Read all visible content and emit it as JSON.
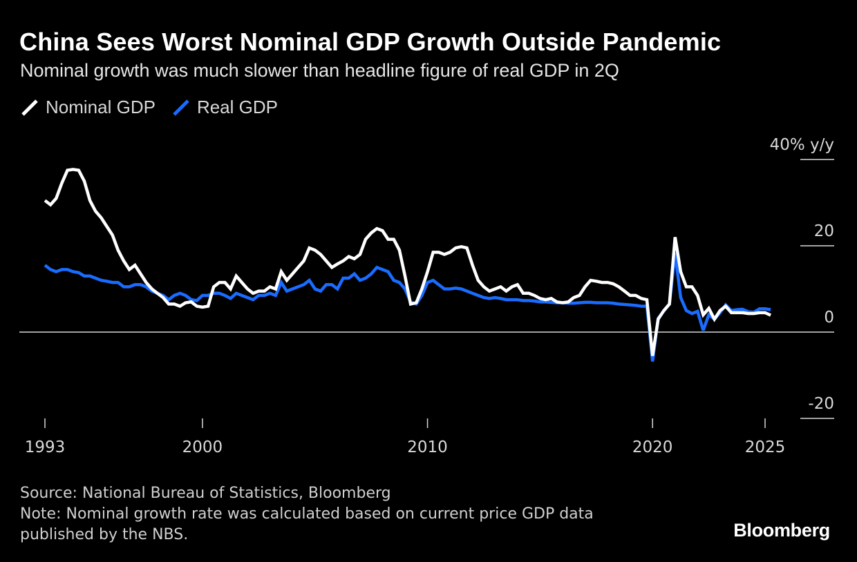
{
  "header": {
    "title": "China Sees Worst Nominal GDP Growth Outside Pandemic",
    "subtitle": "Nominal growth was much slower than headline figure of real GDP in 2Q"
  },
  "legend": {
    "nominal_label": "Nominal GDP",
    "real_label": "Real GDP"
  },
  "colors": {
    "background": "#000000",
    "nominal": "#ffffff",
    "real": "#1a6cff",
    "axis": "#d9d9d9"
  },
  "chart_data": {
    "type": "line",
    "title": "China Sees Worst Nominal GDP Growth Outside Pandemic",
    "subtitle": "Nominal growth was much slower than headline figure of real GDP in 2Q",
    "ylabel": "40% y/y",
    "ylim": [
      -20,
      40
    ],
    "yticks": [
      40,
      20,
      0,
      -20
    ],
    "ytick_labels": [
      "40% y/y",
      "20",
      "0",
      "-20"
    ],
    "xlim": [
      1993,
      2025.5
    ],
    "xticks": [
      1993,
      2000,
      2010,
      2020,
      2025
    ],
    "xtick_labels": [
      "1993",
      "2000",
      "2010",
      "2020",
      "2025"
    ],
    "legend_position": "top-left",
    "series": [
      {
        "name": "Nominal GDP",
        "points": [
          [
            1993.0,
            30.5
          ],
          [
            1993.25,
            29.5
          ],
          [
            1993.5,
            31.0
          ],
          [
            1993.75,
            34.5
          ],
          [
            1994.0,
            37.5
          ],
          [
            1994.25,
            37.7
          ],
          [
            1994.5,
            37.5
          ],
          [
            1994.75,
            35.0
          ],
          [
            1995.0,
            30.5
          ],
          [
            1995.25,
            28.0
          ],
          [
            1995.5,
            26.5
          ],
          [
            1995.75,
            24.5
          ],
          [
            1996.0,
            22.5
          ],
          [
            1996.25,
            19.0
          ],
          [
            1996.5,
            16.5
          ],
          [
            1996.75,
            14.5
          ],
          [
            1997.0,
            15.5
          ],
          [
            1997.25,
            13.5
          ],
          [
            1997.5,
            11.5
          ],
          [
            1997.75,
            10.0
          ],
          [
            1998.0,
            9.0
          ],
          [
            1998.25,
            8.0
          ],
          [
            1998.5,
            6.5
          ],
          [
            1998.75,
            6.5
          ],
          [
            1999.0,
            6.0
          ],
          [
            1999.25,
            6.8
          ],
          [
            1999.5,
            7.0
          ],
          [
            1999.75,
            6.0
          ],
          [
            2000.0,
            5.8
          ],
          [
            2000.25,
            6.0
          ],
          [
            2000.5,
            10.5
          ],
          [
            2000.75,
            11.5
          ],
          [
            2001.0,
            11.5
          ],
          [
            2001.25,
            10.0
          ],
          [
            2001.5,
            13.0
          ],
          [
            2001.75,
            11.5
          ],
          [
            2002.0,
            10.0
          ],
          [
            2002.25,
            9.0
          ],
          [
            2002.5,
            9.5
          ],
          [
            2002.75,
            9.5
          ],
          [
            2003.0,
            10.5
          ],
          [
            2003.25,
            10.0
          ],
          [
            2003.5,
            14.0
          ],
          [
            2003.75,
            12.0
          ],
          [
            2004.0,
            13.5
          ],
          [
            2004.25,
            15.0
          ],
          [
            2004.5,
            16.5
          ],
          [
            2004.75,
            19.5
          ],
          [
            2005.0,
            19.0
          ],
          [
            2005.25,
            18.0
          ],
          [
            2005.5,
            16.5
          ],
          [
            2005.75,
            15.0
          ],
          [
            2006.0,
            15.8
          ],
          [
            2006.25,
            16.5
          ],
          [
            2006.5,
            17.5
          ],
          [
            2006.75,
            17.0
          ],
          [
            2007.0,
            18.0
          ],
          [
            2007.25,
            21.5
          ],
          [
            2007.5,
            23.0
          ],
          [
            2007.75,
            24.0
          ],
          [
            2008.0,
            23.5
          ],
          [
            2008.25,
            21.5
          ],
          [
            2008.5,
            21.5
          ],
          [
            2008.75,
            19.0
          ],
          [
            2009.0,
            13.0
          ],
          [
            2009.25,
            6.5
          ],
          [
            2009.5,
            6.8
          ],
          [
            2009.75,
            10.0
          ],
          [
            2010.0,
            14.0
          ],
          [
            2010.25,
            18.5
          ],
          [
            2010.5,
            18.5
          ],
          [
            2010.75,
            18.0
          ],
          [
            2011.0,
            18.5
          ],
          [
            2011.25,
            19.5
          ],
          [
            2011.5,
            19.8
          ],
          [
            2011.75,
            19.5
          ],
          [
            2012.0,
            15.5
          ],
          [
            2012.25,
            12.0
          ],
          [
            2012.5,
            10.5
          ],
          [
            2012.75,
            9.5
          ],
          [
            2013.0,
            10.0
          ],
          [
            2013.25,
            10.5
          ],
          [
            2013.5,
            9.5
          ],
          [
            2013.75,
            10.5
          ],
          [
            2014.0,
            11.0
          ],
          [
            2014.25,
            9.0
          ],
          [
            2014.5,
            9.0
          ],
          [
            2014.75,
            8.5
          ],
          [
            2015.0,
            7.8
          ],
          [
            2015.25,
            7.5
          ],
          [
            2015.5,
            7.8
          ],
          [
            2015.75,
            7.0
          ],
          [
            2016.0,
            6.8
          ],
          [
            2016.25,
            7.0
          ],
          [
            2016.5,
            8.0
          ],
          [
            2016.75,
            8.5
          ],
          [
            2017.0,
            10.5
          ],
          [
            2017.25,
            12.0
          ],
          [
            2017.5,
            11.8
          ],
          [
            2017.75,
            11.5
          ],
          [
            2018.0,
            11.5
          ],
          [
            2018.25,
            11.2
          ],
          [
            2018.5,
            10.5
          ],
          [
            2018.75,
            9.5
          ],
          [
            2019.0,
            8.5
          ],
          [
            2019.25,
            8.5
          ],
          [
            2019.5,
            7.8
          ],
          [
            2019.75,
            7.5
          ],
          [
            2020.0,
            -5.5
          ],
          [
            2020.25,
            3.0
          ],
          [
            2020.5,
            5.0
          ],
          [
            2020.75,
            6.5
          ],
          [
            2021.0,
            22.0
          ],
          [
            2021.25,
            14.0
          ],
          [
            2021.5,
            10.5
          ],
          [
            2021.75,
            10.5
          ],
          [
            2022.0,
            8.5
          ],
          [
            2022.25,
            4.0
          ],
          [
            2022.5,
            5.5
          ],
          [
            2022.75,
            3.0
          ],
          [
            2023.0,
            5.0
          ],
          [
            2023.25,
            6.0
          ],
          [
            2023.5,
            4.5
          ],
          [
            2023.75,
            4.5
          ],
          [
            2024.0,
            4.5
          ],
          [
            2024.25,
            4.3
          ],
          [
            2024.5,
            4.3
          ],
          [
            2024.75,
            4.5
          ],
          [
            2025.0,
            4.5
          ],
          [
            2025.25,
            3.9
          ]
        ]
      },
      {
        "name": "Real GDP",
        "points": [
          [
            1993.0,
            15.5
          ],
          [
            1993.25,
            14.5
          ],
          [
            1993.5,
            14.0
          ],
          [
            1993.75,
            14.5
          ],
          [
            1994.0,
            14.5
          ],
          [
            1994.25,
            14.0
          ],
          [
            1994.5,
            13.8
          ],
          [
            1994.75,
            13.0
          ],
          [
            1995.0,
            13.0
          ],
          [
            1995.25,
            12.5
          ],
          [
            1995.5,
            12.0
          ],
          [
            1995.75,
            11.8
          ],
          [
            1996.0,
            11.5
          ],
          [
            1996.25,
            11.5
          ],
          [
            1996.5,
            10.5
          ],
          [
            1996.75,
            10.5
          ],
          [
            1997.0,
            11.0
          ],
          [
            1997.25,
            11.0
          ],
          [
            1997.5,
            10.5
          ],
          [
            1997.75,
            9.5
          ],
          [
            1998.0,
            9.0
          ],
          [
            1998.25,
            8.5
          ],
          [
            1998.5,
            7.5
          ],
          [
            1998.75,
            8.5
          ],
          [
            1999.0,
            9.0
          ],
          [
            1999.25,
            8.5
          ],
          [
            1999.5,
            7.5
          ],
          [
            1999.75,
            7.3
          ],
          [
            2000.0,
            8.5
          ],
          [
            2000.25,
            8.5
          ],
          [
            2000.5,
            9.0
          ],
          [
            2000.75,
            9.0
          ],
          [
            2001.0,
            8.5
          ],
          [
            2001.25,
            7.8
          ],
          [
            2001.5,
            9.0
          ],
          [
            2001.75,
            8.5
          ],
          [
            2002.0,
            8.0
          ],
          [
            2002.25,
            7.5
          ],
          [
            2002.5,
            8.5
          ],
          [
            2002.75,
            8.5
          ],
          [
            2003.0,
            9.0
          ],
          [
            2003.25,
            8.5
          ],
          [
            2003.5,
            11.5
          ],
          [
            2003.75,
            9.5
          ],
          [
            2004.0,
            10.0
          ],
          [
            2004.25,
            10.5
          ],
          [
            2004.5,
            11.0
          ],
          [
            2004.75,
            12.0
          ],
          [
            2005.0,
            10.0
          ],
          [
            2005.25,
            9.5
          ],
          [
            2005.5,
            11.0
          ],
          [
            2005.75,
            11.0
          ],
          [
            2006.0,
            10.0
          ],
          [
            2006.25,
            12.5
          ],
          [
            2006.5,
            12.5
          ],
          [
            2006.75,
            13.5
          ],
          [
            2007.0,
            12.0
          ],
          [
            2007.25,
            12.5
          ],
          [
            2007.5,
            13.5
          ],
          [
            2007.75,
            15.0
          ],
          [
            2008.0,
            14.5
          ],
          [
            2008.25,
            14.0
          ],
          [
            2008.5,
            12.0
          ],
          [
            2008.75,
            11.5
          ],
          [
            2009.0,
            10.0
          ],
          [
            2009.25,
            7.0
          ],
          [
            2009.5,
            6.5
          ],
          [
            2009.75,
            8.5
          ],
          [
            2010.0,
            11.5
          ],
          [
            2010.25,
            12.0
          ],
          [
            2010.5,
            11.0
          ],
          [
            2010.75,
            10.0
          ],
          [
            2011.0,
            10.0
          ],
          [
            2011.25,
            10.2
          ],
          [
            2011.5,
            10.0
          ],
          [
            2011.75,
            9.5
          ],
          [
            2012.0,
            9.0
          ],
          [
            2012.25,
            8.5
          ],
          [
            2012.5,
            8.0
          ],
          [
            2012.75,
            7.8
          ],
          [
            2013.0,
            8.0
          ],
          [
            2013.25,
            7.8
          ],
          [
            2013.5,
            7.5
          ],
          [
            2013.75,
            7.5
          ],
          [
            2014.0,
            7.5
          ],
          [
            2014.25,
            7.3
          ],
          [
            2014.5,
            7.3
          ],
          [
            2014.75,
            7.2
          ],
          [
            2015.0,
            7.0
          ],
          [
            2015.25,
            7.0
          ],
          [
            2015.5,
            6.9
          ],
          [
            2015.75,
            6.8
          ],
          [
            2016.0,
            6.8
          ],
          [
            2016.25,
            6.7
          ],
          [
            2016.5,
            6.7
          ],
          [
            2016.75,
            6.8
          ],
          [
            2017.0,
            6.9
          ],
          [
            2017.25,
            6.9
          ],
          [
            2017.5,
            6.8
          ],
          [
            2017.75,
            6.8
          ],
          [
            2018.0,
            6.8
          ],
          [
            2018.25,
            6.7
          ],
          [
            2018.5,
            6.5
          ],
          [
            2018.75,
            6.4
          ],
          [
            2019.0,
            6.3
          ],
          [
            2019.25,
            6.2
          ],
          [
            2019.5,
            6.0
          ],
          [
            2019.75,
            6.0
          ],
          [
            2020.0,
            -6.8
          ],
          [
            2020.25,
            3.2
          ],
          [
            2020.5,
            4.9
          ],
          [
            2020.75,
            6.5
          ],
          [
            2021.0,
            18.3
          ],
          [
            2021.25,
            8.0
          ],
          [
            2021.5,
            5.0
          ],
          [
            2021.75,
            4.3
          ],
          [
            2022.0,
            4.8
          ],
          [
            2022.25,
            0.4
          ],
          [
            2022.5,
            4.0
          ],
          [
            2022.75,
            3.0
          ],
          [
            2023.0,
            4.5
          ],
          [
            2023.25,
            6.3
          ],
          [
            2023.5,
            5.0
          ],
          [
            2023.75,
            5.2
          ],
          [
            2024.0,
            5.3
          ],
          [
            2024.25,
            4.7
          ],
          [
            2024.5,
            4.6
          ],
          [
            2024.75,
            5.4
          ],
          [
            2025.0,
            5.4
          ],
          [
            2025.25,
            5.2
          ]
        ]
      }
    ],
    "annotations": []
  },
  "footer": {
    "source": "Source: National Bureau of Statistics, Bloomberg",
    "note_line1": "Note: Nominal growth rate was calculated based on current price GDP data",
    "note_line2": "published by the NBS.",
    "brand": "Bloomberg"
  }
}
